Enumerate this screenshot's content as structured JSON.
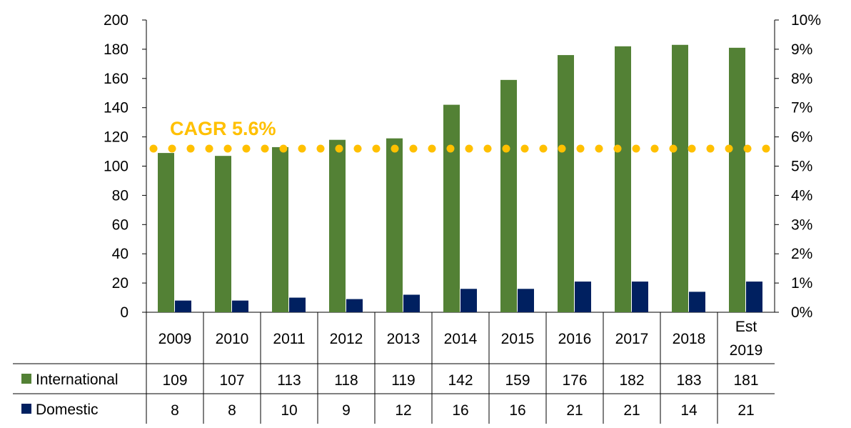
{
  "chart_data": {
    "type": "bar",
    "categories": [
      "2009",
      "2010",
      "2011",
      "2012",
      "2013",
      "2014",
      "2015",
      "2016",
      "2017",
      "2018",
      "Est 2019"
    ],
    "series": [
      {
        "name": "International",
        "values": [
          109,
          107,
          113,
          118,
          119,
          142,
          159,
          176,
          182,
          183,
          181
        ],
        "color": "#538135"
      },
      {
        "name": "Domestic",
        "values": [
          8,
          8,
          10,
          9,
          12,
          16,
          16,
          21,
          21,
          14,
          21
        ],
        "color": "#002060"
      }
    ],
    "y_left": {
      "ticks": [
        "0",
        "20",
        "40",
        "60",
        "80",
        "100",
        "120",
        "140",
        "160",
        "180",
        "200"
      ],
      "ylim": [
        0,
        200
      ]
    },
    "y_right": {
      "ticks": [
        "0%",
        "1%",
        "2%",
        "3%",
        "4%",
        "5%",
        "6%",
        "7%",
        "8%",
        "9%",
        "10%"
      ],
      "ylim": [
        0,
        10
      ]
    },
    "cagr": {
      "label": "CAGR 5.6%",
      "value": 5.6,
      "axis": "right",
      "style": "dotted",
      "color": "#FFC000"
    },
    "legend": "data table below chart",
    "grid": false
  }
}
